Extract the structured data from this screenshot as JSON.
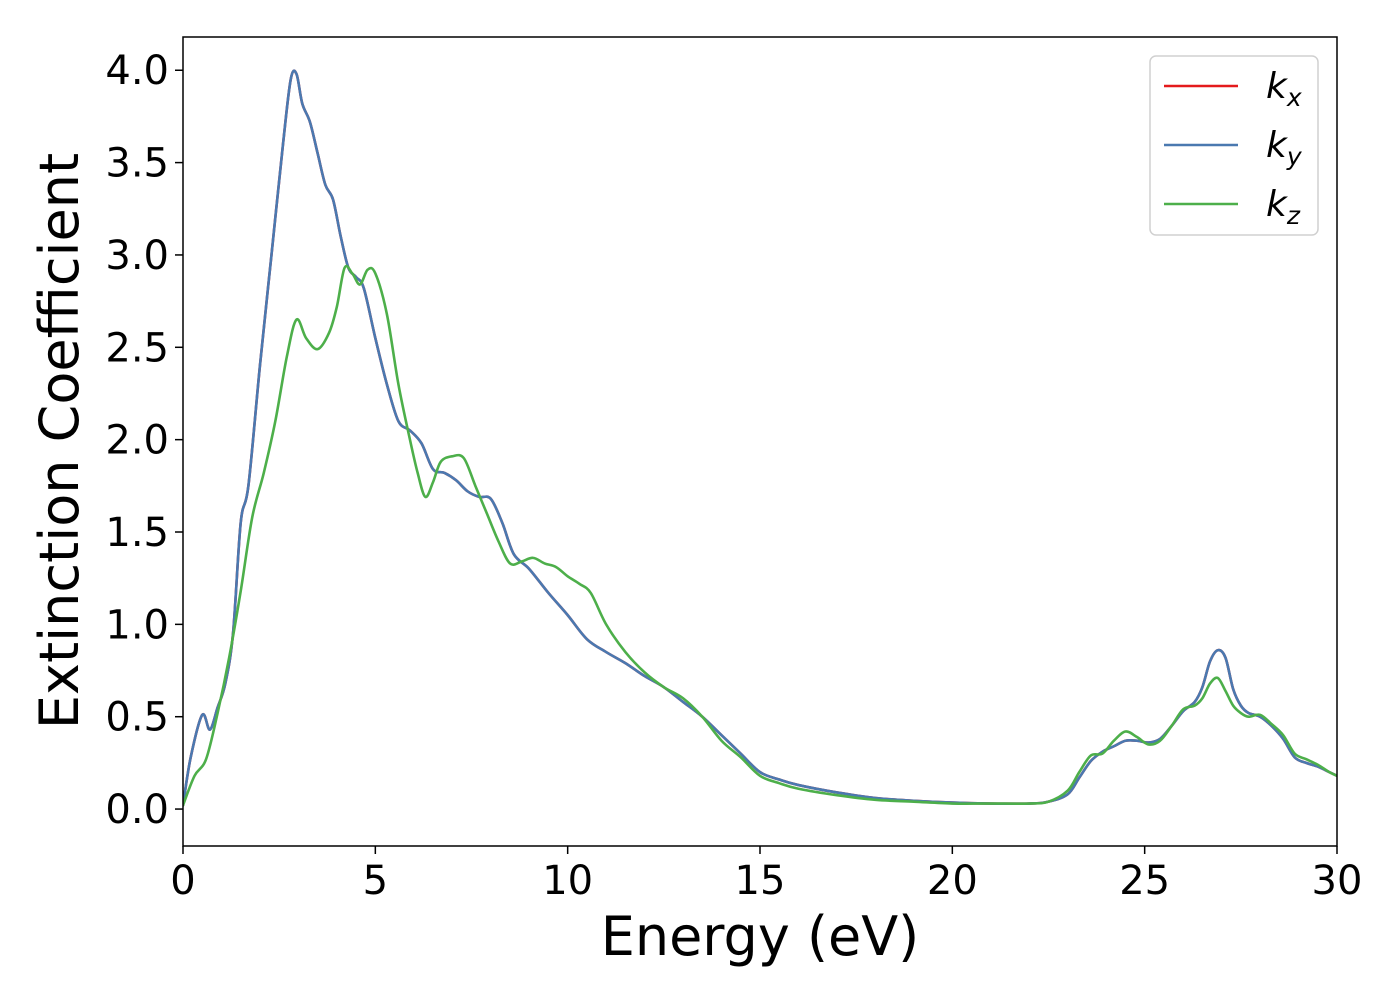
{
  "chart_data": {
    "type": "line",
    "title": "",
    "xlabel": "Energy (eV)",
    "ylabel": "Extinction Coefficient",
    "xlim": [
      0,
      30
    ],
    "ylim": [
      -0.2,
      4.18
    ],
    "xticks": [
      0,
      5,
      10,
      15,
      20,
      25,
      30
    ],
    "yticks": [
      0.0,
      0.5,
      1.0,
      1.5,
      2.0,
      2.5,
      3.0,
      3.5,
      4.0
    ],
    "xtick_labels": [
      "0",
      "5",
      "10",
      "15",
      "20",
      "25",
      "30"
    ],
    "ytick_labels": [
      "0.0",
      "0.5",
      "1.0",
      "1.5",
      "2.0",
      "2.5",
      "3.0",
      "3.5",
      "4.0"
    ],
    "grid": false,
    "legend_position": "top-right",
    "series": [
      {
        "name": "k_x",
        "legend_base": "k",
        "legend_sub": "x",
        "color": "#e41a1c",
        "x": [
          0,
          0.2,
          0.5,
          0.7,
          0.9,
          1.1,
          1.3,
          1.5,
          1.7,
          2.0,
          2.3,
          2.6,
          2.8,
          2.95,
          3.1,
          3.3,
          3.5,
          3.7,
          3.9,
          4.1,
          4.3,
          4.5,
          4.7,
          5.0,
          5.3,
          5.6,
          5.9,
          6.2,
          6.5,
          6.8,
          7.1,
          7.4,
          7.7,
          8.0,
          8.3,
          8.6,
          9.0,
          9.5,
          10.0,
          10.5,
          11.0,
          11.5,
          12.0,
          12.5,
          13.0,
          13.5,
          14.0,
          14.5,
          15.0,
          15.5,
          16.0,
          17.0,
          18.0,
          19.0,
          20.0,
          21.0,
          22.0,
          22.5,
          23.0,
          23.3,
          23.6,
          23.9,
          24.2,
          24.5,
          24.8,
          25.1,
          25.4,
          25.7,
          26.0,
          26.3,
          26.5,
          26.7,
          26.9,
          27.1,
          27.3,
          27.5,
          27.7,
          28.0,
          28.3,
          28.6,
          28.9,
          29.2,
          29.5,
          29.8,
          30.0
        ],
        "y": [
          0.02,
          0.28,
          0.51,
          0.43,
          0.55,
          0.68,
          0.95,
          1.55,
          1.75,
          2.4,
          3.0,
          3.6,
          3.95,
          3.98,
          3.82,
          3.72,
          3.55,
          3.38,
          3.3,
          3.1,
          2.93,
          2.88,
          2.82,
          2.55,
          2.3,
          2.1,
          2.05,
          1.98,
          1.84,
          1.82,
          1.78,
          1.72,
          1.69,
          1.68,
          1.55,
          1.38,
          1.3,
          1.17,
          1.05,
          0.92,
          0.85,
          0.79,
          0.72,
          0.66,
          0.58,
          0.5,
          0.4,
          0.3,
          0.2,
          0.16,
          0.13,
          0.09,
          0.06,
          0.045,
          0.035,
          0.03,
          0.03,
          0.04,
          0.08,
          0.17,
          0.26,
          0.31,
          0.34,
          0.37,
          0.37,
          0.36,
          0.38,
          0.45,
          0.53,
          0.58,
          0.66,
          0.8,
          0.86,
          0.82,
          0.65,
          0.56,
          0.52,
          0.5,
          0.45,
          0.38,
          0.28,
          0.25,
          0.23,
          0.2,
          0.18
        ]
      },
      {
        "name": "k_y",
        "legend_base": "k",
        "legend_sub": "y",
        "color": "#4a79b0",
        "x": [
          0,
          0.2,
          0.5,
          0.7,
          0.9,
          1.1,
          1.3,
          1.5,
          1.7,
          2.0,
          2.3,
          2.6,
          2.8,
          2.95,
          3.1,
          3.3,
          3.5,
          3.7,
          3.9,
          4.1,
          4.3,
          4.5,
          4.7,
          5.0,
          5.3,
          5.6,
          5.9,
          6.2,
          6.5,
          6.8,
          7.1,
          7.4,
          7.7,
          8.0,
          8.3,
          8.6,
          9.0,
          9.5,
          10.0,
          10.5,
          11.0,
          11.5,
          12.0,
          12.5,
          13.0,
          13.5,
          14.0,
          14.5,
          15.0,
          15.5,
          16.0,
          17.0,
          18.0,
          19.0,
          20.0,
          21.0,
          22.0,
          22.5,
          23.0,
          23.3,
          23.6,
          23.9,
          24.2,
          24.5,
          24.8,
          25.1,
          25.4,
          25.7,
          26.0,
          26.3,
          26.5,
          26.7,
          26.9,
          27.1,
          27.3,
          27.5,
          27.7,
          28.0,
          28.3,
          28.6,
          28.9,
          29.2,
          29.5,
          29.8,
          30.0
        ],
        "y": [
          0.02,
          0.28,
          0.51,
          0.43,
          0.55,
          0.68,
          0.95,
          1.55,
          1.75,
          2.4,
          3.0,
          3.6,
          3.95,
          3.98,
          3.82,
          3.72,
          3.55,
          3.38,
          3.3,
          3.1,
          2.93,
          2.88,
          2.82,
          2.55,
          2.3,
          2.1,
          2.05,
          1.98,
          1.84,
          1.82,
          1.78,
          1.72,
          1.69,
          1.68,
          1.55,
          1.38,
          1.3,
          1.17,
          1.05,
          0.92,
          0.85,
          0.79,
          0.72,
          0.66,
          0.58,
          0.5,
          0.4,
          0.3,
          0.2,
          0.16,
          0.13,
          0.09,
          0.06,
          0.045,
          0.035,
          0.03,
          0.03,
          0.04,
          0.08,
          0.17,
          0.26,
          0.31,
          0.34,
          0.37,
          0.37,
          0.36,
          0.38,
          0.45,
          0.53,
          0.58,
          0.66,
          0.8,
          0.86,
          0.82,
          0.65,
          0.56,
          0.52,
          0.5,
          0.45,
          0.38,
          0.28,
          0.25,
          0.23,
          0.2,
          0.18
        ]
      },
      {
        "name": "k_z",
        "legend_base": "k",
        "legend_sub": "z",
        "color": "#4daf4a",
        "x": [
          0,
          0.3,
          0.6,
          0.9,
          1.2,
          1.5,
          1.8,
          2.1,
          2.4,
          2.7,
          2.95,
          3.2,
          3.5,
          3.8,
          4.0,
          4.2,
          4.4,
          4.6,
          4.8,
          5.0,
          5.3,
          5.6,
          5.9,
          6.1,
          6.3,
          6.5,
          6.7,
          7.0,
          7.3,
          7.6,
          7.9,
          8.2,
          8.5,
          8.8,
          9.1,
          9.4,
          9.7,
          10.0,
          10.3,
          10.6,
          11.0,
          11.5,
          12.0,
          12.5,
          13.0,
          13.5,
          14.0,
          14.5,
          15.0,
          15.5,
          16.0,
          17.0,
          18.0,
          19.0,
          20.0,
          21.0,
          22.0,
          22.5,
          23.0,
          23.3,
          23.6,
          23.9,
          24.2,
          24.5,
          24.8,
          25.1,
          25.4,
          25.7,
          26.0,
          26.3,
          26.5,
          26.7,
          26.9,
          27.1,
          27.3,
          27.5,
          27.7,
          28.0,
          28.3,
          28.6,
          28.9,
          29.2,
          29.5,
          29.8,
          30.0
        ],
        "y": [
          0.02,
          0.18,
          0.27,
          0.52,
          0.82,
          1.18,
          1.58,
          1.82,
          2.1,
          2.45,
          2.65,
          2.55,
          2.49,
          2.58,
          2.72,
          2.93,
          2.9,
          2.84,
          2.92,
          2.9,
          2.68,
          2.3,
          2.0,
          1.82,
          1.69,
          1.77,
          1.88,
          1.91,
          1.9,
          1.75,
          1.6,
          1.45,
          1.33,
          1.34,
          1.36,
          1.33,
          1.31,
          1.26,
          1.22,
          1.17,
          1.0,
          0.85,
          0.74,
          0.66,
          0.6,
          0.5,
          0.37,
          0.28,
          0.18,
          0.14,
          0.11,
          0.075,
          0.05,
          0.04,
          0.03,
          0.03,
          0.03,
          0.04,
          0.1,
          0.2,
          0.29,
          0.3,
          0.37,
          0.42,
          0.39,
          0.35,
          0.37,
          0.45,
          0.54,
          0.56,
          0.6,
          0.68,
          0.71,
          0.64,
          0.56,
          0.52,
          0.5,
          0.51,
          0.46,
          0.4,
          0.3,
          0.27,
          0.24,
          0.2,
          0.18
        ]
      }
    ]
  }
}
